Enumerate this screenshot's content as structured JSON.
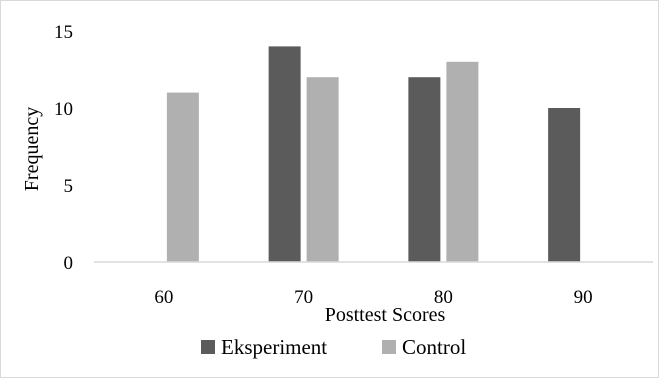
{
  "chart_data": {
    "type": "bar",
    "categories": [
      "60",
      "70",
      "80",
      "90"
    ],
    "series": [
      {
        "name": "Eksperiment",
        "color": "#5b5b5b",
        "values": [
          0,
          14,
          12,
          10
        ]
      },
      {
        "name": "Control",
        "color": "#b0b0b0",
        "values": [
          11,
          12,
          13,
          0
        ]
      }
    ],
    "xlabel": "Posttest Scores",
    "ylabel": "Frequency",
    "ylim": [
      0,
      15
    ],
    "yticks": [
      "0",
      "5",
      "10",
      "15"
    ],
    "grid": false,
    "legend_position": "bottom"
  }
}
